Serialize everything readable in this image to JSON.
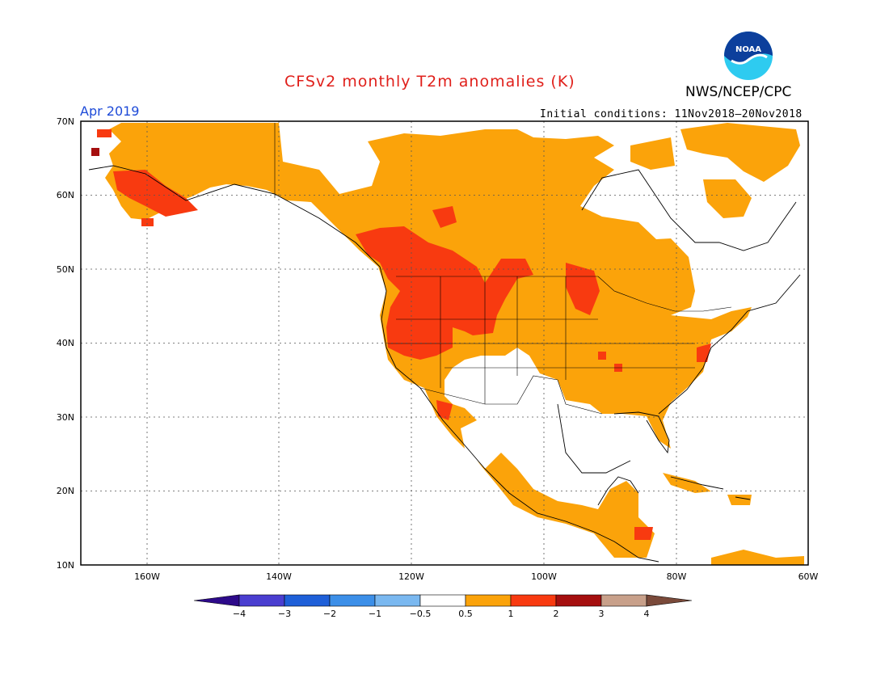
{
  "header": {
    "title": "CFSv2 monthly T2m anomalies (K)",
    "agency": "NWS/NCEP/CPC",
    "month": "Apr 2019",
    "initial_conditions": "Initial conditions: 11Nov2018–20Nov2018",
    "logo_text": "NOAA"
  },
  "map": {
    "lat_labels": [
      "70N",
      "60N",
      "50N",
      "40N",
      "30N",
      "20N",
      "10N"
    ],
    "lon_labels": [
      "160W",
      "140W",
      "120W",
      "100W",
      "80W",
      "60W"
    ],
    "lon_range": [
      -170,
      -60
    ],
    "lat_range": [
      10,
      70
    ]
  },
  "legend": {
    "labels": [
      "−4",
      "−3",
      "−2",
      "−1",
      "−0.5",
      "0.5",
      "1",
      "2",
      "3",
      "4"
    ],
    "colors": [
      "#2d0a8a",
      "#4a3ed0",
      "#1e5fd8",
      "#3c8fe8",
      "#7ab8f0",
      "#ffffff",
      "#fba30a",
      "#f83a10",
      "#a50f0f",
      "#c8a08a",
      "#7a4a3a"
    ]
  },
  "colors": {
    "anom_0_5_1": "#fba30a",
    "anom_1_2": "#f83a10",
    "anom_2_3": "#a50f0f"
  }
}
